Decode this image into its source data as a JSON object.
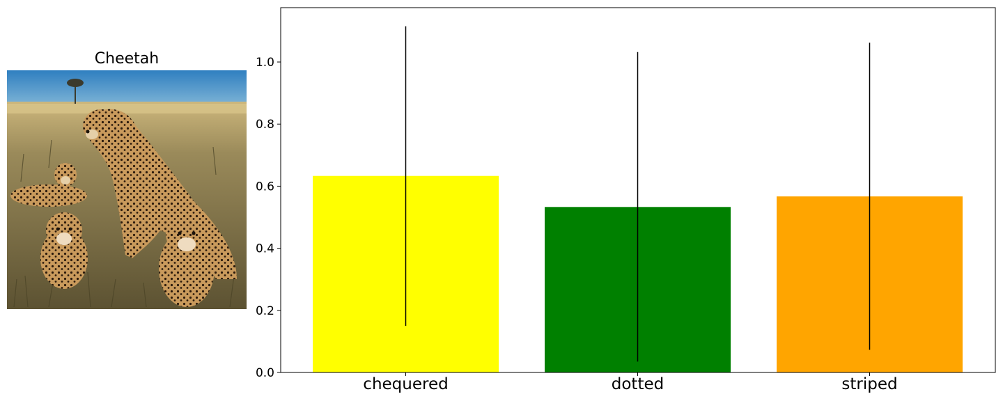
{
  "image_panel": {
    "title": "Cheetah"
  },
  "chart_data": {
    "type": "bar",
    "categories": [
      "chequered",
      "dotted",
      "striped"
    ],
    "values": [
      0.633,
      0.533,
      0.567
    ],
    "error_low": [
      0.15,
      0.035,
      0.073
    ],
    "error_high": [
      1.115,
      1.032,
      1.062
    ],
    "colors": [
      "#ffff00",
      "#008000",
      "#ffa500"
    ],
    "error_color": "#000000",
    "ylim": [
      0,
      1.175
    ],
    "yticks": [
      0.0,
      0.2,
      0.4,
      0.6,
      0.8,
      1.0
    ],
    "ytick_labels": [
      "0.0",
      "0.2",
      "0.4",
      "0.6",
      "0.8",
      "1.0"
    ],
    "title": "",
    "xlabel": "",
    "ylabel": "",
    "grid": false,
    "legend": false
  }
}
